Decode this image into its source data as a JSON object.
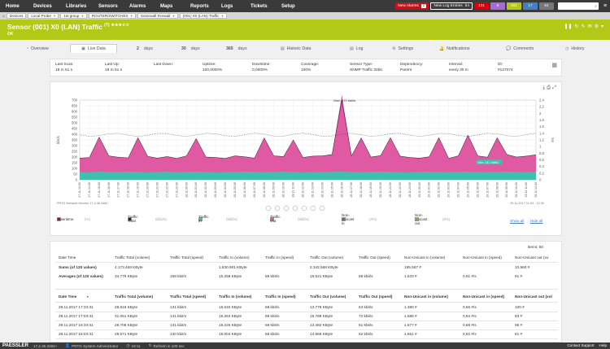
{
  "nav": {
    "items": [
      "Home",
      "Devices",
      "Libraries",
      "Sensors",
      "Alarms",
      "Maps",
      "Reports",
      "Logs",
      "Tickets",
      "Setup"
    ],
    "new_alarms_label": "New Alarms",
    "new_alarms_count": "2",
    "new_log_label": "New Log Entries",
    "new_log_count": "54",
    "badges": [
      {
        "value": "131",
        "color": "#d7000f"
      },
      {
        "value": "8",
        "color": "#a56bd6"
      },
      {
        "value": "461",
        "color": "#b4c817"
      },
      {
        "value": "17",
        "color": "#447fc1"
      },
      {
        "value": "61",
        "color": "#777777"
      }
    ]
  },
  "breadcrumbs": [
    "Devices",
    "Local Probe",
    "1st group",
    "ROUTER/SWITCHES",
    "Sonicwall Firewall",
    "(001) X0 (LAN) Traffic"
  ],
  "header": {
    "title": "Sensor (001) X0 (LAN) Traffic",
    "title_suffix": "(?)",
    "stars": "★★★☆☆",
    "status": "OK"
  },
  "tabs": [
    {
      "label": "Overview",
      "num": ""
    },
    {
      "label": "Live Data",
      "num": ""
    },
    {
      "label": "days",
      "num": "2"
    },
    {
      "label": "days",
      "num": "30"
    },
    {
      "label": "days",
      "num": "365"
    },
    {
      "label": "Historic Data",
      "num": ""
    },
    {
      "label": "Log",
      "num": ""
    },
    {
      "label": "Settings",
      "num": ""
    },
    {
      "label": "Notifications",
      "num": ""
    },
    {
      "label": "Comments",
      "num": ""
    },
    {
      "label": "History",
      "num": ""
    }
  ],
  "info": [
    {
      "label": "Last Scan:",
      "value": "18 m 51 s"
    },
    {
      "label": "Last Up:",
      "value": "18 m 51 s"
    },
    {
      "label": "Last Down:",
      "value": ""
    },
    {
      "label": "Uptime:",
      "value": "100,0000%"
    },
    {
      "label": "Downtime:",
      "value": "0,0000%"
    },
    {
      "label": "Coverage:",
      "value": "100%"
    },
    {
      "label": "Sensor Type:",
      "value": "SNMP Traffic 32bit"
    },
    {
      "label": "Dependency:",
      "value": "Parent"
    },
    {
      "label": "Interval:",
      "value": "every 30 m"
    },
    {
      "label": "ID:",
      "value": "#127074"
    }
  ],
  "chart_data": {
    "type": "area",
    "ylabel": "kbit/s",
    "y2label": "#/s",
    "ylim": [
      0,
      700
    ],
    "y2lim": [
      0,
      2.4
    ],
    "yticks": [
      "0",
      "50",
      "100",
      "150",
      "200",
      "250",
      "300",
      "350",
      "400",
      "450",
      "500",
      "550",
      "600",
      "650",
      "700"
    ],
    "y2ticks": [
      "0",
      "0,2",
      "0,4",
      "0,6",
      "0,8",
      "1",
      "1,2",
      "1,4",
      "1,6",
      "1,8",
      "2",
      "2,2",
      "2,4"
    ],
    "annotation_max": "Max: 670 kbit/s",
    "annotation_min": "Min: 141 kbit/s",
    "footer_left": "PRTG Network Monitor 17.4.36.3484",
    "footer_right": "29.11.2017 11:00 - 12:30",
    "x": [
      "27.11 13:00",
      "27.11 14:00",
      "27.11 15:00",
      "27.11 16:00",
      "27.11 17:00",
      "27.11 18:00",
      "27.11 19:00",
      "27.11 20:00",
      "27.11 21:00",
      "27.11 22:00",
      "27.11 23:00",
      "28.11 00:00",
      "28.11 01:00",
      "28.11 02:00",
      "28.11 03:00",
      "28.11 04:00",
      "28.11 05:00",
      "28.11 06:00",
      "28.11 07:00",
      "28.11 08:00",
      "28.11 09:00",
      "28.11 10:00",
      "28.11 11:00",
      "28.11 12:00",
      "28.11 13:00",
      "28.11 14:00",
      "28.11 15:00",
      "28.11 16:00",
      "28.11 17:00",
      "28.11 18:00",
      "28.11 19:00",
      "28.11 20:00",
      "28.11 21:00",
      "28.11 22:00",
      "28.11 23:00",
      "29.11 00:00",
      "29.11 01:00",
      "29.11 02:00",
      "29.11 03:00",
      "29.11 04:00",
      "29.11 05:00",
      "29.11 06:00",
      "29.11 07:00",
      "29.11 08:00",
      "29.11 09:00",
      "29.11 10:00",
      "29.11 11:00",
      "29.11 12:00"
    ],
    "series": [
      {
        "name": "Traffic Out",
        "color": "#e05aa3",
        "values": [
          120,
          130,
          300,
          140,
          130,
          120,
          300,
          140,
          120,
          130,
          120,
          140,
          290,
          130,
          130,
          120,
          140,
          130,
          120,
          300,
          140,
          130,
          280,
          130,
          140,
          140,
          150,
          670,
          140,
          300,
          130,
          140,
          300,
          140,
          130,
          120,
          130,
          300,
          120,
          140,
          320,
          140,
          130,
          300,
          150,
          130,
          140,
          150
        ]
      },
      {
        "name": "Traffic In",
        "color": "#3fbfad",
        "values": [
          70,
          65,
          75,
          70,
          68,
          72,
          70,
          66,
          70,
          74,
          68,
          70,
          72,
          70,
          66,
          68,
          70,
          72,
          70,
          68,
          70,
          74,
          70,
          66,
          68,
          70,
          72,
          75,
          70,
          68,
          70,
          72,
          70,
          68,
          66,
          70,
          72,
          70,
          68,
          70,
          72,
          70,
          68,
          70,
          72,
          70,
          68,
          70
        ]
      },
      {
        "name": "Traffic Total",
        "color": "#222222",
        "values": [
          190,
          195,
          375,
          210,
          198,
          192,
          370,
          206,
          190,
          204,
          188,
          210,
          362,
          200,
          196,
          188,
          210,
          202,
          190,
          368,
          210,
          204,
          350,
          196,
          208,
          210,
          222,
          745,
          210,
          368,
          200,
          212,
          370,
          208,
          196,
          190,
          202,
          370,
          188,
          210,
          392,
          210,
          198,
          370,
          222,
          200,
          208,
          220
        ]
      }
    ],
    "legend": [
      "Downtime",
      "Traffic Total",
      "Traffic In",
      "Traffic Out",
      "Non-Unicast in",
      "Non-Unicast out"
    ],
    "legend_values": [
      "(%)",
      "(kbit/s)",
      "(kbit/s)",
      "(kbit/s)",
      "(#/s)",
      "(#/s)"
    ],
    "show_all": "Show all",
    "hide_all": "Hide all"
  },
  "table": {
    "items_label": "Items:",
    "items_count": "50",
    "summary_headers": [
      "Date Time",
      "Traffic Total (volume)",
      "Traffic Total (speed)",
      "Traffic In (volume)",
      "Traffic In (speed)",
      "Traffic Out (volume)",
      "Traffic Out (speed)",
      "Non-Unicast in (volume)",
      "Non-Unicast in (speed)",
      "Non-Unicast out (vo"
    ],
    "summary_rows": [
      [
        "Sums (of 120 values)",
        "4.173.469 KByte",
        "",
        "1.830.901 KByte",
        "",
        "2.342.568 KByte",
        "",
        "195.557 #",
        "",
        "10.960 #"
      ],
      [
        "Averages (of 120 values)",
        "34.779 KByte",
        "158 kbit/s",
        "15.258 KByte",
        "69 kbit/s",
        "19.521 KByte",
        "89 kbit/s",
        "1.633 #",
        "0,91 #/s",
        "91 #"
      ]
    ],
    "headers": [
      "Date Time",
      "Traffic Total (volume)",
      "Traffic Total (speed)",
      "Traffic In (volume)",
      "Traffic In (speed)",
      "Traffic Out (volume)",
      "Traffic Out (speed)",
      "Non-Unicast in (volume)",
      "Non-Unicast in (speed)",
      "Non-Unicast out (vol"
    ],
    "rows": [
      [
        "29.11.2017 17:33:31",
        "28.818 KByte",
        "131 kbit/s",
        "15.040 KByte",
        "68 kbit/s",
        "13.778 KByte",
        "63 kbit/s",
        "1.380 #",
        "0,66 #/s",
        "100 #"
      ],
      [
        "29.11.2017 17:03:31",
        "31.061 KByte",
        "141 kbit/s",
        "15.263 KByte",
        "69 kbit/s",
        "15.788 KByte",
        "72 kbit/s",
        "1.686 #",
        "0,94 #/s",
        "83 #"
      ],
      [
        "29.11.2017 16:33:31",
        "28.708 KByte",
        "131 kbit/s",
        "15.226 KByte",
        "69 kbit/s",
        "13.482 KByte",
        "61 kbit/s",
        "1.577 #",
        "0,88 #/s",
        "95 #"
      ],
      [
        "29.11.2017 16:03:31",
        "28.671 KByte",
        "130 kbit/s",
        "15.004 KByte",
        "68 kbit/s",
        "13.668 KByte",
        "62 kbit/s",
        "1.661 #",
        "0,92 #/s",
        "81 #"
      ]
    ]
  },
  "footer": {
    "logo": "PAESSLER",
    "version": "17.4.36.3484+",
    "user": "PRTG System Administrator",
    "time": "18:11",
    "refresh": "Refresh in 100 sec",
    "support": "Contact Support",
    "help": "Help"
  }
}
